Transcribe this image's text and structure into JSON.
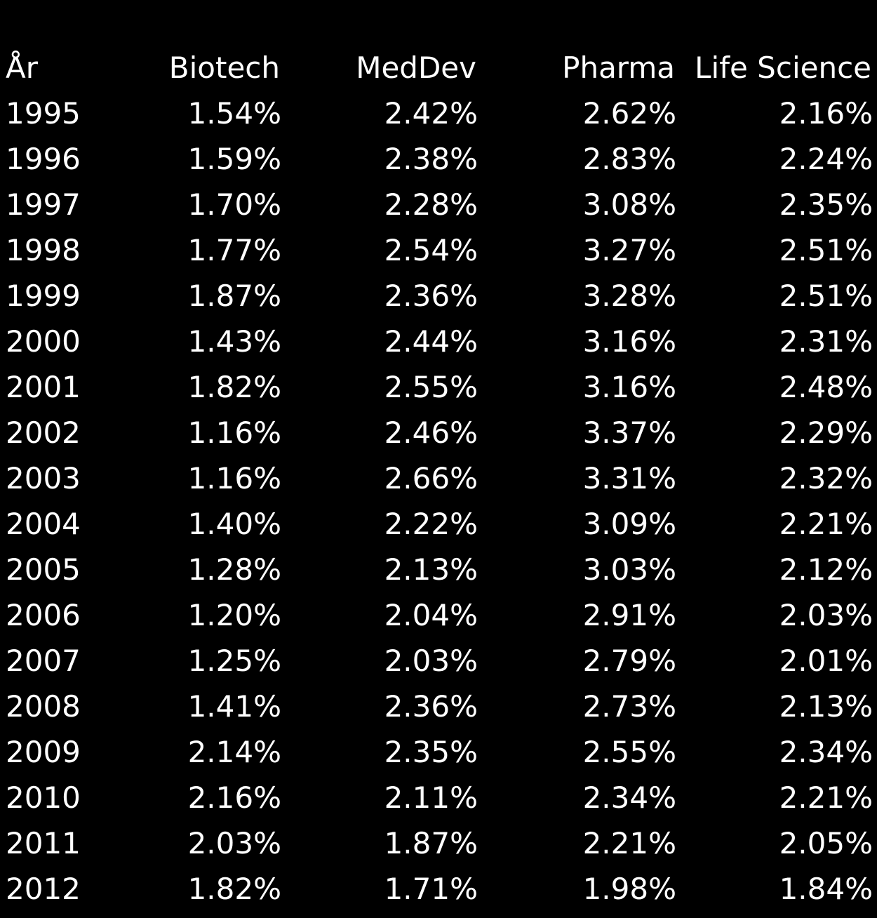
{
  "colors": {
    "background": "#000000",
    "text": "#ffffff"
  },
  "chart_data": {
    "type": "table",
    "columns": [
      "År",
      "Biotech",
      "MedDev",
      "Pharma",
      "Life Science"
    ],
    "rows": [
      [
        "1995",
        "1.54%",
        "2.42%",
        "2.62%",
        "2.16%"
      ],
      [
        "1996",
        "1.59%",
        "2.38%",
        "2.83%",
        "2.24%"
      ],
      [
        "1997",
        "1.70%",
        "2.28%",
        "3.08%",
        "2.35%"
      ],
      [
        "1998",
        "1.77%",
        "2.54%",
        "3.27%",
        "2.51%"
      ],
      [
        "1999",
        "1.87%",
        "2.36%",
        "3.28%",
        "2.51%"
      ],
      [
        "2000",
        "1.43%",
        "2.44%",
        "3.16%",
        "2.31%"
      ],
      [
        "2001",
        "1.82%",
        "2.55%",
        "3.16%",
        "2.48%"
      ],
      [
        "2002",
        "1.16%",
        "2.46%",
        "3.37%",
        "2.29%"
      ],
      [
        "2003",
        "1.16%",
        "2.66%",
        "3.31%",
        "2.32%"
      ],
      [
        "2004",
        "1.40%",
        "2.22%",
        "3.09%",
        "2.21%"
      ],
      [
        "2005",
        "1.28%",
        "2.13%",
        "3.03%",
        "2.12%"
      ],
      [
        "2006",
        "1.20%",
        "2.04%",
        "2.91%",
        "2.03%"
      ],
      [
        "2007",
        "1.25%",
        "2.03%",
        "2.79%",
        "2.01%"
      ],
      [
        "2008",
        "1.41%",
        "2.36%",
        "2.73%",
        "2.13%"
      ],
      [
        "2009",
        "2.14%",
        "2.35%",
        "2.55%",
        "2.34%"
      ],
      [
        "2010",
        "2.16%",
        "2.11%",
        "2.34%",
        "2.21%"
      ],
      [
        "2011",
        "2.03%",
        "1.87%",
        "2.21%",
        "2.05%"
      ],
      [
        "2012",
        "1.82%",
        "1.71%",
        "1.98%",
        "1.84%"
      ]
    ]
  }
}
